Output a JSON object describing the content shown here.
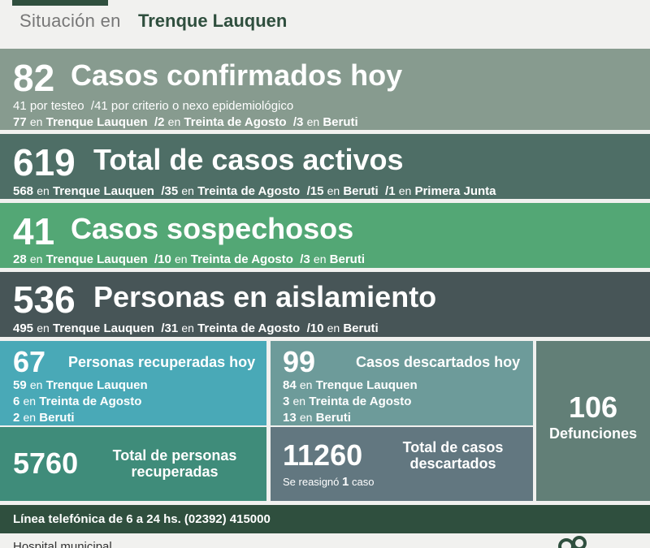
{
  "header": {
    "label": "Situación en",
    "city": "Trenque Lauquen"
  },
  "confirmados": {
    "number": "82",
    "title": "Casos confirmados hoy",
    "line1": "41 por testeo  /41 por criterio o nexo epidemiológico",
    "line2": {
      "n1": "77",
      "p1": "Trenque Lauquen",
      "n2": "/2",
      "p2": "Treinta de Agosto",
      "n3": "/3",
      "p3": "Beruti"
    }
  },
  "activos": {
    "number": "619",
    "title": "Total de casos activos",
    "line": {
      "n1": "568",
      "p1": "Trenque Lauquen",
      "n2": "/35",
      "p2": "Treinta de Agosto",
      "n3": "/15",
      "p3": "Beruti",
      "n4": "/1",
      "p4": "Primera Junta"
    }
  },
  "sospechosos": {
    "number": "41",
    "title": "Casos sospechosos",
    "line": {
      "n1": "28",
      "p1": "Trenque Lauquen",
      "n2": "/10",
      "p2": "Treinta de Agosto",
      "n3": "/3",
      "p3": "Beruti"
    }
  },
  "aislamiento": {
    "number": "536",
    "title": "Personas en aislamiento",
    "line": {
      "n1": "495",
      "p1": "Trenque Lauquen",
      "n2": "/31",
      "p2": "Treinta de Agosto",
      "n3": "/10",
      "p3": "Beruti"
    }
  },
  "en": "en",
  "recuperados_hoy": {
    "number": "67",
    "title": "Personas recuperadas hoy",
    "rows": [
      {
        "n": "59",
        "p": "Trenque Lauquen"
      },
      {
        "n": "6",
        "p": "Treinta de Agosto"
      },
      {
        "n": "2",
        "p": "Beruti"
      }
    ]
  },
  "recuperados_total": {
    "number": "5760",
    "title1": "Total de personas",
    "title2": "recuperadas"
  },
  "descartados_hoy": {
    "number": "99",
    "title": "Casos descartados hoy",
    "rows": [
      {
        "n": "84",
        "p": "Trenque Lauquen"
      },
      {
        "n": "3",
        "p": "Treinta de Agosto"
      },
      {
        "n": "13",
        "p": "Beruti"
      }
    ]
  },
  "descartados_total": {
    "number": "11260",
    "title1": "Total de casos",
    "title2": "descartados",
    "note_pre": "Se reasignó",
    "note_n": "1",
    "note_post": "caso"
  },
  "defunciones": {
    "number": "106",
    "title": "Defunciones"
  },
  "phone": "Línea telefónica de 6 a 24 hs. (02392) 415000",
  "footer": "Hospital municipal",
  "colors": {
    "dark_green": "#2f4f3e",
    "confirmados": "#879b8f",
    "activos": "#4e6e66",
    "sospechosos": "#53a775",
    "aislamiento": "#475557"
  }
}
